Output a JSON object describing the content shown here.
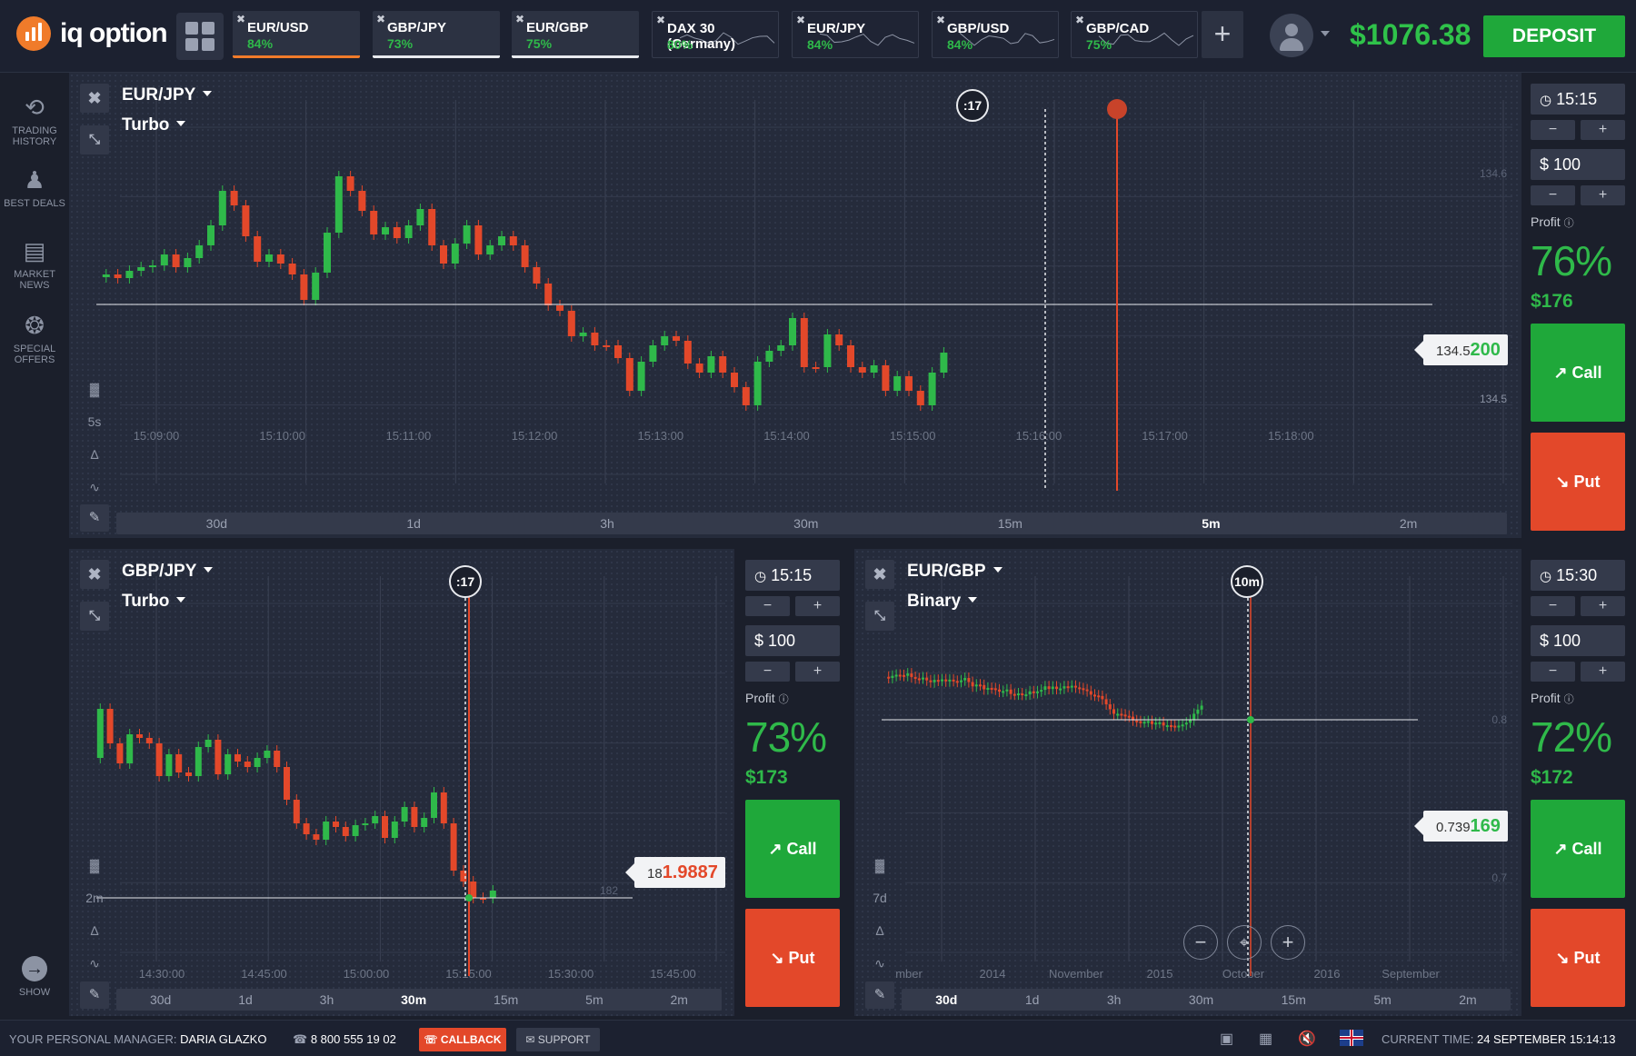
{
  "brand": {
    "name": "iq option",
    "color": "#f07b2a"
  },
  "header": {
    "tabs": [
      {
        "name": "EUR/USD",
        "pct": "84%",
        "active": true,
        "underline": "#f07b2a"
      },
      {
        "name": "GBP/JPY",
        "pct": "73%",
        "active": true,
        "underline": "#e8eaee"
      },
      {
        "name": "EUR/GBP",
        "pct": "75%",
        "active": true,
        "underline": "#e8eaee"
      },
      {
        "name": "DAX 30 (Germany)",
        "pct": "80%",
        "active": false
      },
      {
        "name": "EUR/JPY",
        "pct": "84%",
        "active": false
      },
      {
        "name": "GBP/USD",
        "pct": "84%",
        "active": false
      },
      {
        "name": "GBP/CAD",
        "pct": "75%",
        "active": false
      }
    ],
    "add_icon": "plus-icon",
    "balance": "$1076.38",
    "deposit": "DEPOSIT"
  },
  "sidebar": {
    "items": [
      {
        "label1": "TRADING",
        "label2": "HISTORY",
        "icon": "history-icon"
      },
      {
        "label1": "BEST DEALS",
        "label2": "",
        "icon": "best-deals-icon"
      },
      {
        "label1": "MARKET",
        "label2": "NEWS",
        "icon": "news-icon"
      },
      {
        "label1": "SPECIAL",
        "label2": "OFFERS",
        "icon": "offers-icon"
      }
    ],
    "show": "SHOW"
  },
  "panels": {
    "main": {
      "asset": "EUR/JPY",
      "mode": "Turbo",
      "timer": ":17",
      "interval": "5s",
      "price_small": "134.5",
      "price_big": "200",
      "axis_top": "134.6",
      "axis_bottom": "134.5",
      "times": [
        "15:09:00",
        "15:10:00",
        "15:11:00",
        "15:12:00",
        "15:13:00",
        "15:14:00",
        "15:15:00",
        "15:16:00",
        "15:17:00",
        "15:18:00"
      ],
      "tf": [
        "30d",
        "1d",
        "3h",
        "30m",
        "15m",
        "5m",
        "2m"
      ],
      "tf_active": "5m",
      "trade": {
        "expiry": "15:15",
        "amount": "$ 100",
        "profit_label": "Profit",
        "profit_pct": "76%",
        "payout": "$176",
        "call": "Call",
        "put": "Put"
      }
    },
    "left": {
      "asset": "GBP/JPY",
      "mode": "Turbo",
      "timer": ":17",
      "interval": "2m",
      "price_small": "18",
      "price_big": "1.9887",
      "axis_label": "182",
      "times": [
        "14:30:00",
        "14:45:00",
        "15:00:00",
        "15:15:00",
        "15:30:00",
        "15:45:00"
      ],
      "tf": [
        "30d",
        "1d",
        "3h",
        "30m",
        "15m",
        "5m",
        "2m"
      ],
      "tf_active": "30m",
      "trade": {
        "expiry": "15:15",
        "amount": "$ 100",
        "profit_label": "Profit",
        "profit_pct": "73%",
        "payout": "$173",
        "call": "Call",
        "put": "Put"
      }
    },
    "right": {
      "asset": "EUR/GBP",
      "mode": "Binary",
      "timer": "10m",
      "interval": "7d",
      "price_small": "0.739",
      "price_big": "169",
      "axis_top": "0.8",
      "axis_bottom": "0.7",
      "times": [
        "mber",
        "2014",
        "November",
        "2015",
        "October",
        "2016",
        "September"
      ],
      "tf": [
        "30d",
        "1d",
        "3h",
        "30m",
        "15m",
        "5m",
        "2m"
      ],
      "tf_active": "30d",
      "trade": {
        "expiry": "15:30",
        "amount": "$ 100",
        "profit_label": "Profit",
        "profit_pct": "72%",
        "payout": "$172",
        "call": "Call",
        "put": "Put"
      }
    }
  },
  "footer": {
    "manager_label": "YOUR PERSONAL MANAGER:",
    "manager_name": "DARIA GLAZKO",
    "phone": "8 800 555 19 02",
    "callback": "CALLBACK",
    "support": "SUPPORT",
    "time_label": "CURRENT TIME:",
    "time_value": "24 SEPTEMBER 15:14:13"
  },
  "colors": {
    "up": "#2fb94a",
    "down": "#e3482a",
    "bg": "#1b1f2b",
    "panel": "#252b3b"
  }
}
